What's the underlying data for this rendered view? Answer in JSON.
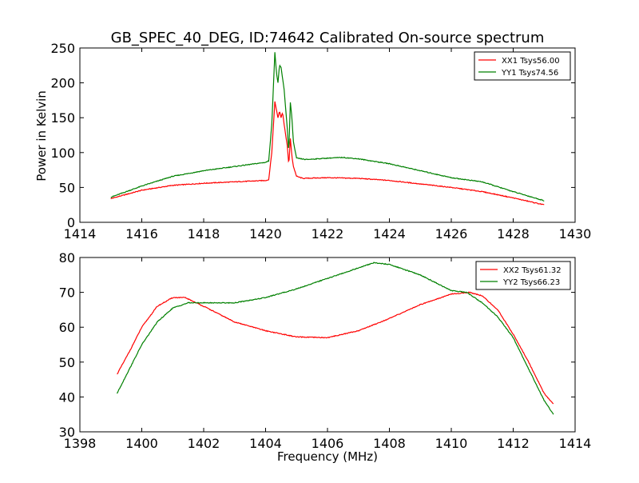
{
  "chart_data": [
    {
      "type": "line",
      "title": "GB_SPEC_40_DEG, ID:74642 Calibrated On-source spectrum",
      "xlabel": "",
      "ylabel": "Power in Kelvin",
      "xlim": [
        1414,
        1430
      ],
      "ylim": [
        0,
        250
      ],
      "xticks": [
        1414,
        1416,
        1418,
        1420,
        1422,
        1424,
        1426,
        1428,
        1430
      ],
      "yticks": [
        0,
        50,
        100,
        150,
        200,
        250
      ],
      "legend_position": "top-right",
      "grid": false,
      "series": [
        {
          "name": "XX1 Tsys56.00",
          "color": "#ff0000",
          "points": [
            [
              1415,
              34
            ],
            [
              1416,
              46
            ],
            [
              1417,
              53
            ],
            [
              1418,
              56
            ],
            [
              1419,
              58
            ],
            [
              1420,
              60
            ],
            [
              1420.1,
              61
            ],
            [
              1420.2,
              100
            ],
            [
              1420.3,
              173
            ],
            [
              1420.4,
              150
            ],
            [
              1420.45,
              160
            ],
            [
              1420.5,
              150
            ],
            [
              1420.55,
              158
            ],
            [
              1420.6,
              140
            ],
            [
              1420.7,
              110
            ],
            [
              1420.75,
              82
            ],
            [
              1420.8,
              120
            ],
            [
              1420.85,
              95
            ],
            [
              1420.9,
              80
            ],
            [
              1421,
              66
            ],
            [
              1421.2,
              63
            ],
            [
              1422,
              64
            ],
            [
              1423,
              63
            ],
            [
              1424,
              60
            ],
            [
              1425,
              55
            ],
            [
              1426,
              50
            ],
            [
              1427,
              44
            ],
            [
              1428,
              35
            ],
            [
              1429,
              25
            ]
          ]
        },
        {
          "name": "YY1 Tsys74.56",
          "color": "#008000",
          "points": [
            [
              1415,
              36
            ],
            [
              1416,
              52
            ],
            [
              1417,
              66
            ],
            [
              1418,
              74
            ],
            [
              1419,
              80
            ],
            [
              1420,
              86
            ],
            [
              1420.1,
              88
            ],
            [
              1420.2,
              140
            ],
            [
              1420.3,
              244
            ],
            [
              1420.35,
              215
            ],
            [
              1420.4,
              200
            ],
            [
              1420.45,
              225
            ],
            [
              1420.5,
              222
            ],
            [
              1420.6,
              190
            ],
            [
              1420.7,
              135
            ],
            [
              1420.75,
              100
            ],
            [
              1420.8,
              172
            ],
            [
              1420.85,
              150
            ],
            [
              1420.9,
              115
            ],
            [
              1421,
              92
            ],
            [
              1421.3,
              90
            ],
            [
              1422,
              92
            ],
            [
              1422.5,
              93
            ],
            [
              1423,
              91
            ],
            [
              1424,
              84
            ],
            [
              1425,
              74
            ],
            [
              1426,
              64
            ],
            [
              1427,
              58
            ],
            [
              1428,
              44
            ],
            [
              1429,
              31
            ]
          ]
        }
      ]
    },
    {
      "type": "line",
      "title": "",
      "xlabel": "Frequency (MHz)",
      "ylabel": "",
      "xlim": [
        1398,
        1414
      ],
      "ylim": [
        30,
        80
      ],
      "xticks": [
        1398,
        1400,
        1402,
        1404,
        1406,
        1408,
        1410,
        1412,
        1414
      ],
      "yticks": [
        30,
        40,
        50,
        60,
        70,
        80
      ],
      "legend_position": "top-right",
      "grid": false,
      "series": [
        {
          "name": "XX2 Tsys61.32",
          "color": "#ff0000",
          "points": [
            [
              1399.2,
              46.5
            ],
            [
              1399.6,
              53
            ],
            [
              1400,
              60
            ],
            [
              1400.5,
              66
            ],
            [
              1401,
              68.5
            ],
            [
              1401.4,
              68.5
            ],
            [
              1402,
              66
            ],
            [
              1403,
              61.5
            ],
            [
              1404,
              59
            ],
            [
              1405,
              57.2
            ],
            [
              1406,
              57
            ],
            [
              1407,
              59
            ],
            [
              1408,
              62.5
            ],
            [
              1409,
              66.5
            ],
            [
              1410,
              69.5
            ],
            [
              1410.6,
              70
            ],
            [
              1411,
              69
            ],
            [
              1411.5,
              65
            ],
            [
              1412,
              58
            ],
            [
              1412.5,
              50
            ],
            [
              1413,
              41
            ],
            [
              1413.3,
              38
            ]
          ]
        },
        {
          "name": "YY2 Tsys66.23",
          "color": "#008000",
          "points": [
            [
              1399.2,
              41
            ],
            [
              1399.6,
              48
            ],
            [
              1400,
              55
            ],
            [
              1400.5,
              61.5
            ],
            [
              1401,
              65.5
            ],
            [
              1401.5,
              67
            ],
            [
              1402,
              67
            ],
            [
              1403,
              67
            ],
            [
              1404,
              68.5
            ],
            [
              1405,
              71
            ],
            [
              1406,
              74
            ],
            [
              1407,
              77
            ],
            [
              1407.5,
              78.5
            ],
            [
              1408,
              78
            ],
            [
              1409,
              75
            ],
            [
              1410,
              70.5
            ],
            [
              1410.5,
              70
            ],
            [
              1411,
              67
            ],
            [
              1411.5,
              63
            ],
            [
              1412,
              57
            ],
            [
              1412.5,
              48
            ],
            [
              1413,
              39
            ],
            [
              1413.3,
              35
            ]
          ]
        }
      ]
    }
  ]
}
